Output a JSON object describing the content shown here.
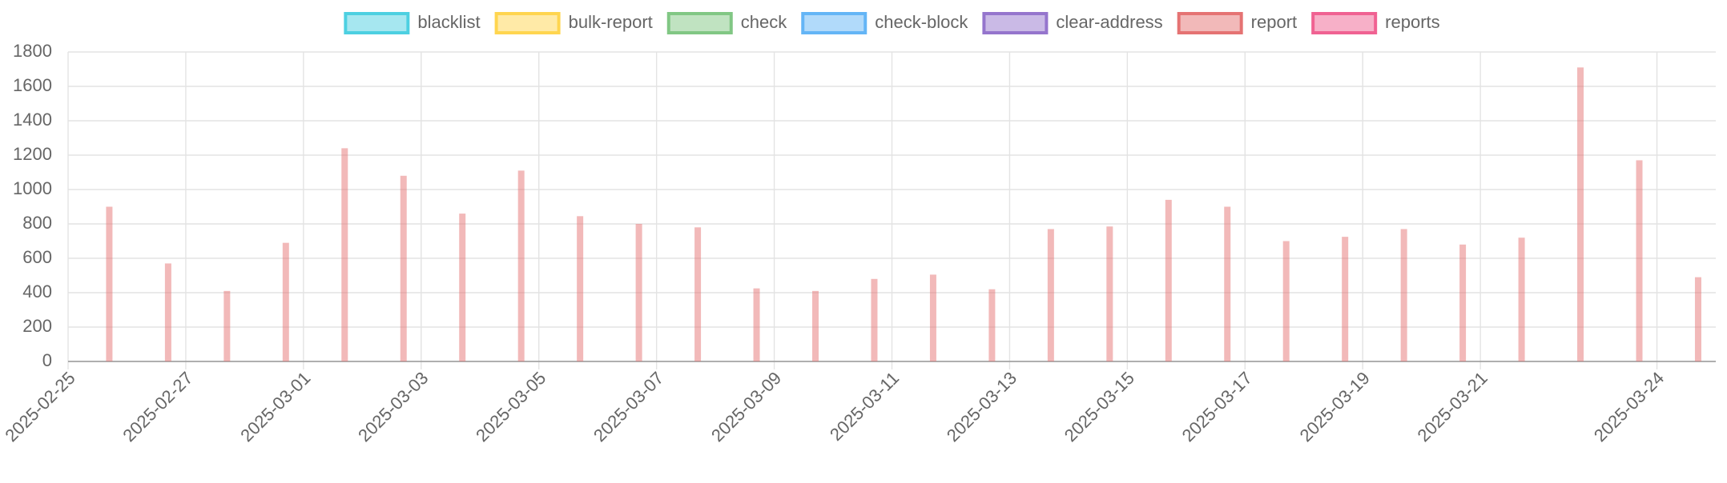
{
  "chart_data": {
    "type": "bar",
    "x": [
      "2025-02-25",
      "2025-02-26",
      "2025-02-27",
      "2025-02-28",
      "2025-03-01",
      "2025-03-02",
      "2025-03-03",
      "2025-03-04",
      "2025-03-05",
      "2025-03-06",
      "2025-03-07",
      "2025-03-08",
      "2025-03-09",
      "2025-03-10",
      "2025-03-11",
      "2025-03-12",
      "2025-03-13",
      "2025-03-14",
      "2025-03-15",
      "2025-03-16",
      "2025-03-17",
      "2025-03-18",
      "2025-03-19",
      "2025-03-20",
      "2025-03-21",
      "2025-03-22",
      "2025-03-23",
      "2025-03-24"
    ],
    "series": [
      {
        "name": "blacklist",
        "color": "#4dd0e1",
        "values": [
          null,
          null,
          null,
          null,
          null,
          null,
          null,
          null,
          null,
          null,
          null,
          null,
          null,
          null,
          null,
          null,
          null,
          null,
          null,
          null,
          null,
          null,
          null,
          null,
          null,
          null,
          null,
          null
        ]
      },
      {
        "name": "bulk-report",
        "color": "#ffd54f",
        "values": [
          null,
          null,
          null,
          null,
          null,
          null,
          null,
          null,
          null,
          null,
          null,
          null,
          null,
          null,
          null,
          null,
          null,
          null,
          null,
          null,
          null,
          null,
          null,
          null,
          null,
          null,
          null,
          null
        ]
      },
      {
        "name": "check",
        "color": "#81c784",
        "values": [
          null,
          null,
          null,
          null,
          null,
          null,
          null,
          null,
          null,
          null,
          null,
          null,
          null,
          null,
          null,
          null,
          null,
          null,
          null,
          null,
          null,
          null,
          null,
          null,
          null,
          null,
          null,
          null
        ]
      },
      {
        "name": "check-block",
        "color": "#64b5f6",
        "values": [
          null,
          null,
          null,
          null,
          null,
          null,
          null,
          null,
          null,
          null,
          null,
          null,
          null,
          null,
          null,
          null,
          null,
          null,
          null,
          null,
          null,
          null,
          null,
          null,
          null,
          null,
          null,
          null
        ]
      },
      {
        "name": "clear-address",
        "color": "#9575cd",
        "values": [
          null,
          null,
          null,
          null,
          null,
          null,
          null,
          null,
          null,
          null,
          null,
          null,
          null,
          null,
          null,
          null,
          null,
          null,
          null,
          null,
          null,
          null,
          null,
          null,
          null,
          null,
          null,
          null
        ]
      },
      {
        "name": "report",
        "color": "#e57373",
        "values": [
          900,
          570,
          410,
          690,
          1240,
          1080,
          860,
          1110,
          845,
          800,
          780,
          425,
          410,
          480,
          505,
          420,
          770,
          785,
          940,
          900,
          700,
          725,
          770,
          680,
          720,
          1710,
          1170,
          490
        ]
      },
      {
        "name": "reports",
        "color": "#f06292",
        "values": [
          null,
          null,
          null,
          null,
          null,
          null,
          null,
          null,
          null,
          null,
          null,
          null,
          null,
          null,
          null,
          null,
          null,
          null,
          null,
          null,
          null,
          null,
          null,
          null,
          null,
          null,
          null,
          null
        ]
      }
    ],
    "xlim": [
      "2025-02-25",
      "2025-03-25"
    ],
    "xticks": [
      "2025-02-25",
      "2025-02-27",
      "2025-03-01",
      "2025-03-03",
      "2025-03-05",
      "2025-03-07",
      "2025-03-09",
      "2025-03-11",
      "2025-03-13",
      "2025-03-15",
      "2025-03-17",
      "2025-03-19",
      "2025-03-21",
      "2025-03-24"
    ],
    "ylim": [
      0,
      1800
    ],
    "yticks": [
      0,
      200,
      400,
      600,
      800,
      1000,
      1200,
      1400,
      1600,
      1800
    ],
    "grid": true
  }
}
